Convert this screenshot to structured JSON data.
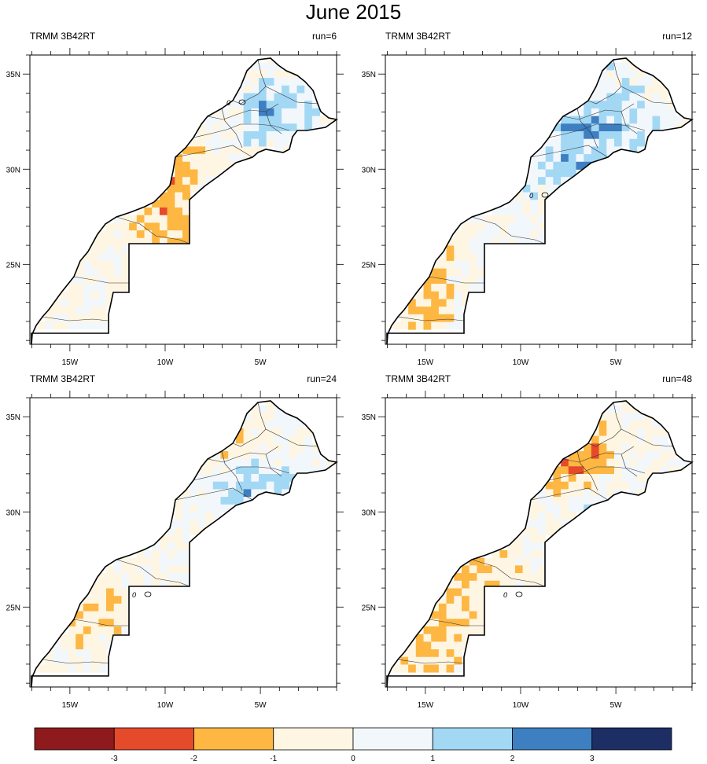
{
  "title": "June 2015",
  "panels": [
    {
      "left_label": "TRMM 3B42RT",
      "right_label": "run=6"
    },
    {
      "left_label": "TRMM 3B42RT",
      "right_label": "run=12"
    },
    {
      "left_label": "TRMM 3B42RT",
      "right_label": "run=24"
    },
    {
      "left_label": "TRMM 3B42RT",
      "right_label": "run=48"
    }
  ],
  "axes": {
    "lon_ticks": [
      "15W",
      "10W",
      "5W"
    ],
    "lat_ticks": [
      "35N",
      "30N",
      "25N"
    ]
  },
  "contour_label": "0",
  "colorbar": {
    "colors": [
      "#8e1a1d",
      "#e54a2b",
      "#fdb742",
      "#fef6e3",
      "#f2f7fc",
      "#a3d8f5",
      "#3e7fc1",
      "#1c2e63"
    ],
    "tick_labels": [
      "-3",
      "-2",
      "-1",
      "0",
      "1",
      "2",
      "3"
    ]
  }
}
